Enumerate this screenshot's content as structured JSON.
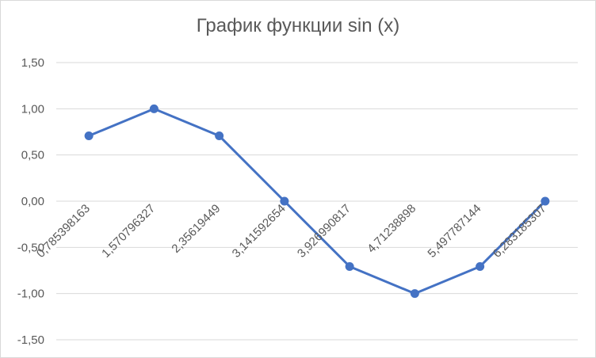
{
  "chart_data": {
    "type": "line",
    "title": "График функции sin (x)",
    "xlabel": "",
    "ylabel": "",
    "categories": [
      "0,785398163",
      "1,570796327",
      "2,35619449",
      "3,141592654",
      "3,926990817",
      "4,71238898",
      "5,497787144",
      "6,283185307"
    ],
    "series": [
      {
        "values": [
          0.7071,
          1.0,
          0.7071,
          0.0,
          -0.7071,
          -1.0,
          -0.7071,
          0.0
        ]
      }
    ],
    "y_ticks": [
      "1,50",
      "1,00",
      "0,50",
      "0,00",
      "-0,50",
      "-1,00",
      "-1,50"
    ],
    "ylim": [
      -1.5,
      1.5
    ],
    "grid": true,
    "legend": "none",
    "colors": {
      "series": "#4472c4",
      "grid": "#d9d9d9",
      "text": "#595959"
    }
  }
}
